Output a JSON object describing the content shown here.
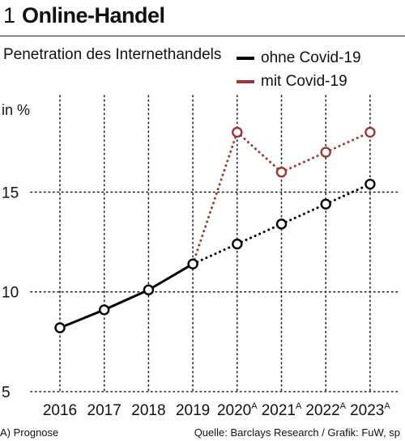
{
  "header": {
    "number": "1",
    "title": "Online-Handel"
  },
  "footer": {
    "note": "A) Prognose",
    "source": "Quelle: Barclays Research / Grafik: FuW, sp"
  },
  "colors": {
    "ohne": "#000000",
    "mit": "#a03535",
    "grid": "#222222"
  },
  "chart_data": {
    "type": "line",
    "title": "Penetration des Internethandels",
    "ylabel": "in %",
    "xlabel": "",
    "categories": [
      "2016",
      "2017",
      "2018",
      "2019",
      "2020",
      "2021",
      "2022",
      "2023"
    ],
    "category_suffix": [
      "",
      "",
      "",
      "",
      "A",
      "A",
      "A",
      "A"
    ],
    "ylim": [
      5,
      20
    ],
    "yticks": [
      5,
      10,
      15
    ],
    "grid": true,
    "legend_position": "top-right",
    "series": [
      {
        "name": "ohne Covid-19",
        "color": "#000000",
        "values": [
          8.2,
          9.1,
          10.1,
          11.4,
          12.4,
          13.4,
          14.4,
          15.4
        ],
        "solid_until_index": 3
      },
      {
        "name": "mit Covid-19",
        "color": "#a03535",
        "values": [
          null,
          null,
          null,
          11.4,
          18.0,
          16.0,
          17.0,
          18.0
        ],
        "solid_until_index": -1
      }
    ]
  }
}
